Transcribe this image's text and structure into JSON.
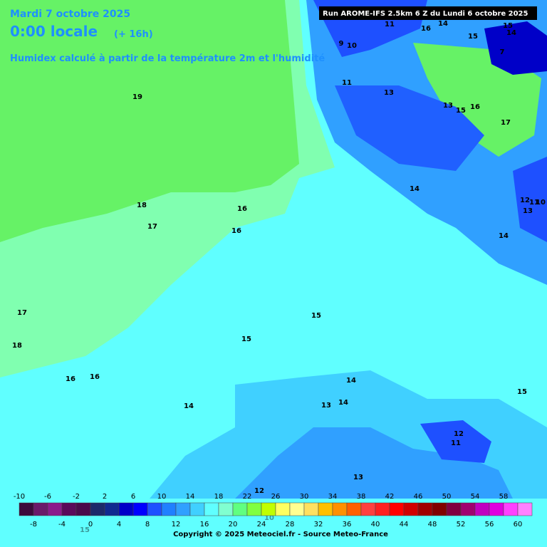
{
  "header": {
    "date": "Mardi 7 octobre 2025",
    "time": "0:00 locale",
    "offset": "(+ 16h)",
    "subtitle": "Humidex calculé à partir de la température 2m et l'humidité",
    "run": "Run AROME-IFS 2.5km 6 Z du Lundi 6 octobre 2025"
  },
  "contour_labels": [
    11,
    16,
    14,
    15,
    15,
    14,
    7,
    9,
    10,
    11,
    13,
    13,
    15,
    16,
    17,
    19,
    14,
    12,
    11,
    10,
    13,
    14,
    18,
    16,
    17,
    16,
    15,
    17,
    18,
    15,
    16,
    16,
    14,
    13,
    14,
    15,
    14,
    12,
    11,
    13,
    12,
    10,
    15
  ],
  "legend": {
    "ticks_top": [
      -10,
      -6,
      -2,
      2,
      6,
      10,
      14,
      18,
      22,
      26,
      30,
      34,
      38,
      42,
      46,
      50,
      54,
      58
    ],
    "ticks_bottom": [
      -8,
      -4,
      0,
      4,
      8,
      12,
      16,
      20,
      24,
      28,
      32,
      36,
      40,
      44,
      48,
      52,
      56,
      60
    ],
    "colors": [
      "#3c0a3c",
      "#6a1a6a",
      "#8b1a8b",
      "#5a0a5a",
      "#4a0a4a",
      "#1c2a6a",
      "#102a90",
      "#0000c8",
      "#0000ff",
      "#1e50ff",
      "#2080ff",
      "#30a0ff",
      "#40d0ff",
      "#60ffff",
      "#80ffd0",
      "#60ff80",
      "#80ff40",
      "#c0ff00",
      "#ffff60",
      "#ffff90",
      "#ffe060",
      "#ffc000",
      "#ff9000",
      "#ff6000",
      "#ff4040",
      "#ff2020",
      "#ff0000",
      "#d00000",
      "#a00000",
      "#800000",
      "#800040",
      "#a00070",
      "#c000c0",
      "#e000e0",
      "#ff40ff",
      "#ff80ff"
    ]
  },
  "footer": {
    "copyright": "Copyright © 2025 Meteociel.fr - Source Meteo-France"
  }
}
